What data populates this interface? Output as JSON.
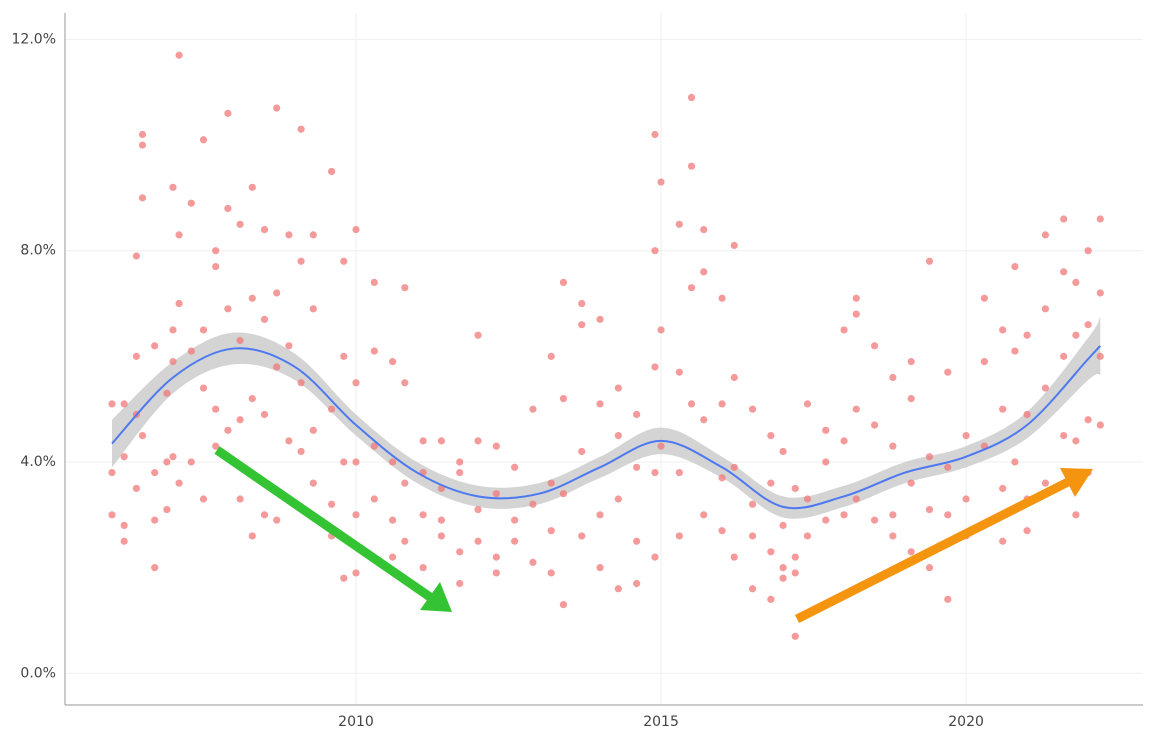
{
  "chart_data": {
    "type": "scatter",
    "xlim": [
      2005.23,
      2022.9
    ],
    "xticks": [
      2010,
      2015,
      2020
    ],
    "ylim": [
      -0.6,
      12.5
    ],
    "yticks": [
      {
        "value": 0,
        "label": "0.0%"
      },
      {
        "value": 4,
        "label": "4.0%"
      },
      {
        "value": 8,
        "label": "8.0%"
      },
      {
        "value": 12,
        "label": "12.0%"
      }
    ],
    "grid": true,
    "series": [
      {
        "type": "band",
        "color": "#bdbdbd",
        "x": [
          2006,
          2007,
          2008,
          2009,
          2010,
          2011,
          2012,
          2013,
          2014,
          2015,
          2016,
          2017,
          2018,
          2019,
          2020,
          2021,
          2022,
          2022.2
        ],
        "lower": [
          3.9,
          5.3,
          5.85,
          5.55,
          4.5,
          3.6,
          3.15,
          3.2,
          3.7,
          4.15,
          3.7,
          2.95,
          3.15,
          3.6,
          3.9,
          4.45,
          5.55,
          5.65
        ],
        "upper": [
          4.8,
          5.9,
          6.45,
          6.05,
          4.9,
          4.0,
          3.55,
          3.6,
          4.1,
          4.65,
          4.1,
          3.35,
          3.55,
          4.0,
          4.3,
          4.95,
          6.35,
          6.75
        ]
      },
      {
        "type": "scatter",
        "color": "#f07878",
        "x": [
          2006.0,
          2006.0,
          2006.0,
          2006.2,
          2006.2,
          2006.2,
          2006.2,
          2006.4,
          2006.4,
          2006.4,
          2006.4,
          2006.5,
          2006.5,
          2006.5,
          2006.5,
          2006.7,
          2006.7,
          2006.7,
          2006.7,
          2006.9,
          2006.9,
          2006.9,
          2007.0,
          2007.0,
          2007.0,
          2007.0,
          2007.1,
          2007.1,
          2007.1,
          2007.1,
          2007.3,
          2007.3,
          2007.3,
          2007.5,
          2007.5,
          2007.5,
          2007.5,
          2007.7,
          2007.7,
          2007.7,
          2007.7,
          2007.9,
          2007.9,
          2007.9,
          2007.9,
          2008.1,
          2008.1,
          2008.1,
          2008.1,
          2008.3,
          2008.3,
          2008.3,
          2008.3,
          2008.5,
          2008.5,
          2008.5,
          2008.5,
          2008.7,
          2008.7,
          2008.7,
          2008.7,
          2008.9,
          2008.9,
          2008.9,
          2009.1,
          2009.1,
          2009.1,
          2009.1,
          2009.3,
          2009.3,
          2009.3,
          2009.3,
          2009.6,
          2009.6,
          2009.6,
          2009.6,
          2009.8,
          2009.8,
          2009.8,
          2009.8,
          2010.0,
          2010.0,
          2010.0,
          2010.0,
          2010.0,
          2010.3,
          2010.3,
          2010.3,
          2010.3,
          2010.6,
          2010.6,
          2010.6,
          2010.6,
          2010.8,
          2010.8,
          2010.8,
          2010.8,
          2011.1,
          2011.1,
          2011.1,
          2011.1,
          2011.4,
          2011.4,
          2011.4,
          2011.4,
          2011.7,
          2011.7,
          2011.7,
          2011.7,
          2012.0,
          2012.0,
          2012.0,
          2012.0,
          2012.3,
          2012.3,
          2012.3,
          2012.3,
          2012.6,
          2012.6,
          2012.6,
          2012.9,
          2012.9,
          2012.9,
          2013.2,
          2013.2,
          2013.2,
          2013.2,
          2013.4,
          2013.4,
          2013.4,
          2013.4,
          2013.7,
          2013.7,
          2013.7,
          2013.7,
          2014.0,
          2014.0,
          2014.0,
          2014.0,
          2014.3,
          2014.3,
          2014.3,
          2014.3,
          2014.6,
          2014.6,
          2014.6,
          2014.6,
          2014.9,
          2014.9,
          2014.9,
          2014.9,
          2014.9,
          2015.0,
          2015.0,
          2015.0,
          2015.3,
          2015.3,
          2015.3,
          2015.3,
          2015.5,
          2015.5,
          2015.5,
          2015.5,
          2015.7,
          2015.7,
          2015.7,
          2015.7,
          2016.0,
          2016.0,
          2016.0,
          2016.0,
          2016.2,
          2016.2,
          2016.2,
          2016.2,
          2016.5,
          2016.5,
          2016.5,
          2016.5,
          2016.8,
          2016.8,
          2016.8,
          2016.8,
          2017.0,
          2017.0,
          2017.0,
          2017.0,
          2017.2,
          2017.2,
          2017.2,
          2017.2,
          2017.4,
          2017.4,
          2017.4,
          2017.7,
          2017.7,
          2017.7,
          2018.0,
          2018.0,
          2018.0,
          2018.2,
          2018.2,
          2018.2,
          2018.2,
          2018.5,
          2018.5,
          2018.5,
          2018.8,
          2018.8,
          2018.8,
          2018.8,
          2019.1,
          2019.1,
          2019.1,
          2019.1,
          2019.4,
          2019.4,
          2019.4,
          2019.4,
          2019.7,
          2019.7,
          2019.7,
          2019.7,
          2020.0,
          2020.0,
          2020.0,
          2020.3,
          2020.3,
          2020.3,
          2020.3,
          2020.6,
          2020.6,
          2020.6,
          2020.6,
          2020.8,
          2020.8,
          2020.8,
          2021.0,
          2021.0,
          2021.0,
          2021.0,
          2021.3,
          2021.3,
          2021.3,
          2021.3,
          2021.6,
          2021.6,
          2021.6,
          2021.6,
          2021.8,
          2021.8,
          2021.8,
          2021.8,
          2022.0,
          2022.0,
          2022.0,
          2022.0,
          2022.2,
          2022.2,
          2022.2,
          2022.2
        ],
        "values": [
          3.0,
          5.1,
          3.8,
          2.5,
          4.1,
          5.1,
          2.8,
          6.0,
          7.9,
          4.9,
          3.5,
          10.2,
          9.0,
          10.0,
          4.5,
          6.2,
          3.8,
          2.9,
          2.0,
          5.3,
          3.1,
          4.0,
          6.5,
          9.2,
          4.1,
          5.9,
          11.7,
          7.0,
          8.3,
          3.6,
          8.9,
          6.1,
          4.0,
          10.1,
          5.4,
          6.5,
          3.3,
          8.0,
          7.7,
          5.0,
          4.3,
          10.6,
          8.8,
          6.9,
          4.6,
          8.5,
          6.3,
          3.3,
          4.8,
          9.2,
          7.1,
          2.6,
          5.2,
          8.4,
          6.7,
          4.9,
          3.0,
          10.7,
          7.2,
          5.8,
          2.9,
          8.3,
          6.2,
          4.4,
          10.3,
          7.8,
          5.5,
          4.2,
          8.3,
          6.9,
          4.6,
          3.6,
          9.5,
          5.0,
          3.2,
          2.6,
          7.8,
          6.0,
          4.0,
          1.8,
          8.4,
          5.5,
          4.0,
          3.0,
          1.9,
          7.4,
          6.1,
          3.3,
          4.3,
          5.9,
          4.0,
          2.9,
          2.2,
          7.3,
          5.5,
          3.6,
          2.5,
          4.4,
          3.0,
          3.8,
          2.0,
          4.4,
          2.9,
          2.6,
          3.5,
          3.8,
          2.3,
          1.7,
          4.0,
          6.4,
          3.1,
          2.5,
          4.4,
          4.3,
          2.2,
          3.4,
          1.9,
          3.9,
          2.9,
          2.5,
          5.0,
          3.2,
          2.1,
          6.0,
          3.6,
          2.7,
          1.9,
          7.4,
          5.2,
          3.4,
          1.3,
          7.0,
          6.6,
          4.2,
          2.6,
          6.7,
          5.1,
          3.0,
          2.0,
          5.4,
          4.5,
          3.3,
          1.6,
          4.9,
          3.9,
          2.5,
          1.7,
          10.2,
          8.0,
          5.8,
          3.8,
          2.2,
          9.3,
          6.5,
          4.3,
          8.5,
          5.7,
          3.8,
          2.6,
          10.9,
          9.6,
          7.3,
          5.1,
          8.4,
          7.6,
          4.8,
          3.0,
          7.1,
          5.1,
          3.7,
          2.7,
          8.1,
          5.6,
          3.9,
          2.2,
          5.0,
          3.2,
          2.6,
          1.6,
          4.5,
          3.6,
          2.3,
          1.4,
          4.2,
          2.8,
          2.0,
          1.8,
          3.5,
          2.2,
          0.7,
          1.9,
          5.1,
          3.3,
          2.6,
          4.6,
          4.0,
          2.9,
          4.4,
          3.0,
          6.5,
          6.8,
          7.1,
          5.0,
          3.3,
          6.2,
          4.7,
          2.9,
          5.6,
          4.3,
          3.0,
          2.6,
          5.9,
          5.2,
          3.6,
          2.3,
          7.8,
          4.1,
          3.1,
          2.0,
          5.7,
          3.9,
          3.0,
          1.4,
          4.5,
          3.3,
          2.6,
          7.1,
          5.9,
          4.3,
          2.8,
          6.5,
          5.0,
          3.5,
          2.5,
          7.7,
          6.1,
          4.0,
          6.4,
          4.9,
          3.3,
          2.7,
          8.3,
          6.9,
          5.4,
          3.6,
          8.6,
          7.6,
          6.0,
          4.5,
          7.4,
          6.4,
          4.4,
          3.0,
          8.0,
          6.6,
          4.8,
          3.8,
          8.6,
          7.2,
          6.0,
          4.7
        ]
      },
      {
        "type": "line",
        "color": "#4d79f0",
        "x": [
          2006,
          2007,
          2008,
          2009,
          2010,
          2011,
          2012,
          2013,
          2014,
          2015,
          2016,
          2017,
          2018,
          2019,
          2020,
          2021,
          2022,
          2022.2
        ],
        "values": [
          4.35,
          5.6,
          6.15,
          5.8,
          4.7,
          3.8,
          3.35,
          3.4,
          3.9,
          4.4,
          3.9,
          3.15,
          3.35,
          3.8,
          4.1,
          4.7,
          5.95,
          6.2
        ]
      }
    ]
  }
}
